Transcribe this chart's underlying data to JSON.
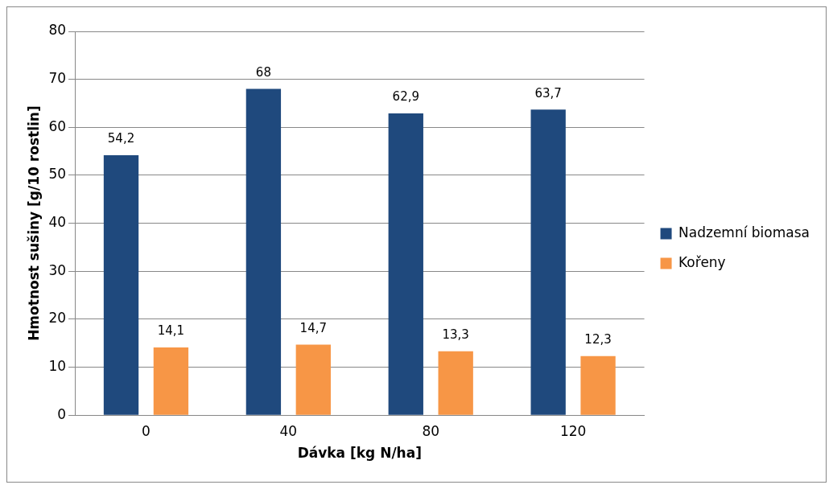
{
  "chart_data": {
    "type": "bar",
    "xlabel": "Dávka [kg N/ha]",
    "ylabel": "Hmotnost sušiny [g/10 rostlin]",
    "categories": [
      "0",
      "40",
      "80",
      "120"
    ],
    "series": [
      {
        "name": "Nadzemní biomasa",
        "color": "#1f497d",
        "values": [
          54.2,
          68,
          62.9,
          63.7
        ],
        "value_labels": [
          "54,2",
          "68",
          "62,9",
          "63,7"
        ]
      },
      {
        "name": "Kořeny",
        "color": "#f79646",
        "values": [
          14.1,
          14.7,
          13.3,
          12.3
        ],
        "value_labels": [
          "14,1",
          "14,7",
          "13,3",
          "12,3"
        ]
      }
    ],
    "ylim": [
      0,
      80
    ],
    "yticks": [
      0,
      10,
      20,
      30,
      40,
      50,
      60,
      70,
      80
    ],
    "grid": "y",
    "legend": "right"
  }
}
